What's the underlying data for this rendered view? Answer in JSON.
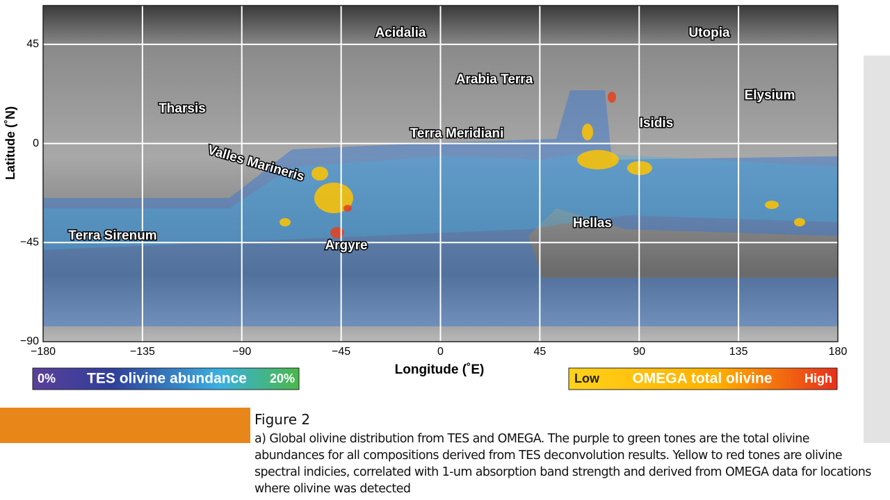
{
  "figure": {
    "axes": {
      "x_title": "Longitude (˚E)",
      "y_title": "Latitude (˚N)",
      "x_ticks": [
        "−180",
        "−135",
        "−90",
        "−45",
        "0",
        "45",
        "90",
        "135",
        "180"
      ],
      "y_ticks": [
        "45",
        "0",
        "−45",
        "−90"
      ]
    },
    "regions": [
      "Acidalia",
      "Utopia",
      "Arabia Terra",
      "Elysium",
      "Tharsis",
      "Isidis",
      "Terra Meridiani",
      "Valles Marineris",
      "Hellas",
      "Terra Sirenum",
      "Argyre"
    ],
    "legend_tes": {
      "min": "0%",
      "title": "TES olivine abundance",
      "max": "20%"
    },
    "legend_omega": {
      "min": "Low",
      "title": "OMEGA total olivine",
      "max": "High"
    }
  },
  "caption": {
    "title": "Figure 2",
    "text": "a) Global olivine distribution from TES and OMEGA. The purple to green tones are the total olivine abundances for all compositions derived from TES deconvolution results. Yellow to red tones are olivine spectral indicies, correlated with 1-um absorption band strength and derived from OMEGA data for locations where olivine was detected"
  }
}
